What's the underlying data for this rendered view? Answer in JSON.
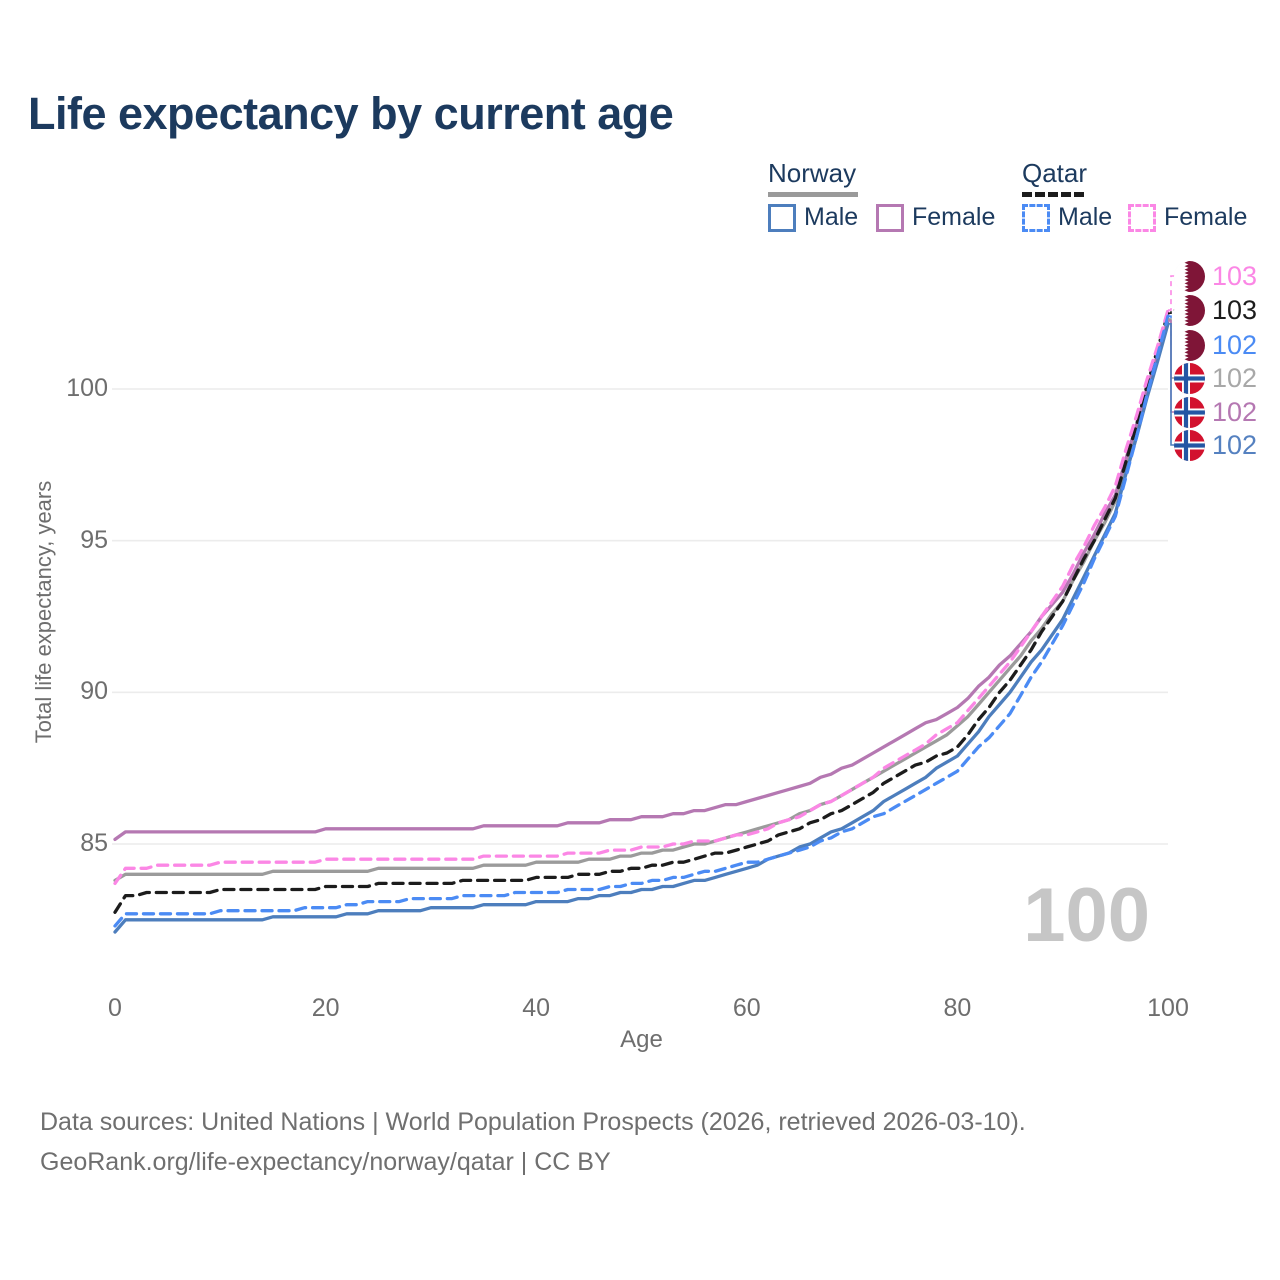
{
  "title": "Life expectancy by current age",
  "legend": {
    "groups": [
      {
        "label": "Norway",
        "style": "solid",
        "underline_color": "#9a9a9a",
        "items": [
          {
            "label": "Male",
            "color": "#4d7ebd"
          },
          {
            "label": "Female",
            "color": "#b578b2"
          }
        ]
      },
      {
        "label": "Qatar",
        "style": "dashed",
        "underline_color": "#1c1c1c",
        "items": [
          {
            "label": "Male",
            "color": "#4b8bf4"
          },
          {
            "label": "Female",
            "color": "#fb87e5"
          }
        ]
      }
    ]
  },
  "y_axis": {
    "title": "Total life expectancy, years",
    "ticks": [
      100,
      95,
      90,
      85
    ],
    "range": [
      82,
      103.5
    ]
  },
  "x_axis": {
    "title": "Age",
    "ticks": [
      0,
      20,
      40,
      60,
      80,
      100
    ],
    "range": [
      0,
      100
    ]
  },
  "watermark": "100",
  "end_labels": [
    {
      "value": "103",
      "country": "qatar",
      "series": "Qatar Female",
      "color": "#fb87e5"
    },
    {
      "value": "103",
      "country": "qatar",
      "series": "Qatar Both sexes",
      "color": "#1c1c1c"
    },
    {
      "value": "102",
      "country": "qatar",
      "series": "Qatar Male",
      "color": "#4b8bf4"
    },
    {
      "value": "102",
      "country": "norway",
      "series": "Norway Both sexes",
      "color": "#a8a8a8"
    },
    {
      "value": "102",
      "country": "norway",
      "series": "Norway Female",
      "color": "#b578b2"
    },
    {
      "value": "102",
      "country": "norway",
      "series": "Norway Male",
      "color": "#5581c0"
    }
  ],
  "footer": {
    "line1": "Data sources: United Nations | World Population Prospects (2026, retrieved 2026-03-10).",
    "line2": "GeoRank.org/life-expectancy/norway/qatar | CC BY"
  },
  "colors": {
    "title_text": "#1c3a5e",
    "axis_text": "#6e6e6e",
    "grid": "#ececec",
    "watermark": "#c6c6c6"
  },
  "chart_data": {
    "type": "line",
    "title": "Life expectancy by current age",
    "xlabel": "Age",
    "ylabel": "Total life expectancy, years",
    "xlim": [
      0,
      100
    ],
    "ylim_ticks": [
      85,
      100
    ],
    "grid": "horizontal",
    "legend_position": "top-right",
    "ages": [
      0,
      1,
      5,
      10,
      15,
      20,
      25,
      30,
      35,
      40,
      45,
      50,
      55,
      60,
      65,
      70,
      75,
      80,
      85,
      90,
      95,
      100
    ],
    "series": [
      {
        "name": "Norway Both sexes",
        "country": "norway",
        "sex": "all",
        "line_style": "solid",
        "color": "#9b9b9b",
        "end_label": "102",
        "values": [
          83.8,
          83.95,
          83.95,
          84.0,
          84.05,
          84.1,
          84.15,
          84.2,
          84.25,
          84.35,
          84.45,
          84.65,
          84.95,
          85.35,
          85.95,
          86.75,
          87.8,
          88.85,
          90.8,
          93.0,
          96.3,
          102.3
        ]
      },
      {
        "name": "Norway Female",
        "country": "norway",
        "sex": "female",
        "line_style": "solid",
        "color": "#b578b2",
        "end_label": "102",
        "values": [
          85.15,
          85.35,
          85.4,
          85.4,
          85.4,
          85.45,
          85.45,
          85.5,
          85.55,
          85.6,
          85.7,
          85.85,
          86.05,
          86.4,
          86.9,
          87.6,
          88.6,
          89.5,
          91.2,
          93.3,
          96.5,
          102.25
        ]
      },
      {
        "name": "Norway Male",
        "country": "norway",
        "sex": "male",
        "line_style": "solid",
        "color": "#4d7ebd",
        "end_label": "102",
        "values": [
          82.1,
          82.45,
          82.5,
          82.5,
          82.55,
          82.6,
          82.75,
          82.85,
          82.95,
          83.05,
          83.2,
          83.45,
          83.75,
          84.2,
          84.85,
          85.7,
          86.8,
          87.9,
          90.0,
          92.4,
          95.9,
          102.15
        ]
      },
      {
        "name": "Qatar Both sexes",
        "country": "qatar",
        "sex": "all",
        "line_style": "dashed",
        "color": "#1c1c1c",
        "end_label": "103",
        "values": [
          82.75,
          83.3,
          83.4,
          83.45,
          83.5,
          83.55,
          83.65,
          83.7,
          83.8,
          83.85,
          84.0,
          84.2,
          84.5,
          84.9,
          85.5,
          86.3,
          87.4,
          88.2,
          90.4,
          93.0,
          96.4,
          102.5
        ]
      },
      {
        "name": "Qatar Female",
        "country": "qatar",
        "sex": "female",
        "line_style": "dashed",
        "color": "#fb87e5",
        "end_label": "103",
        "values": [
          83.7,
          84.15,
          84.3,
          84.35,
          84.4,
          84.45,
          84.5,
          84.5,
          84.55,
          84.6,
          84.7,
          84.85,
          85.05,
          85.3,
          85.9,
          86.8,
          87.9,
          89.0,
          91.0,
          93.5,
          96.8,
          102.6
        ]
      },
      {
        "name": "Qatar Male",
        "country": "qatar",
        "sex": "male",
        "line_style": "dashed",
        "color": "#4b8bf4",
        "end_label": "102",
        "values": [
          82.3,
          82.65,
          82.7,
          82.75,
          82.8,
          82.9,
          83.1,
          83.2,
          83.3,
          83.4,
          83.5,
          83.7,
          84.0,
          84.35,
          84.8,
          85.5,
          86.4,
          87.4,
          89.3,
          92.2,
          95.8,
          102.4
        ]
      }
    ]
  }
}
